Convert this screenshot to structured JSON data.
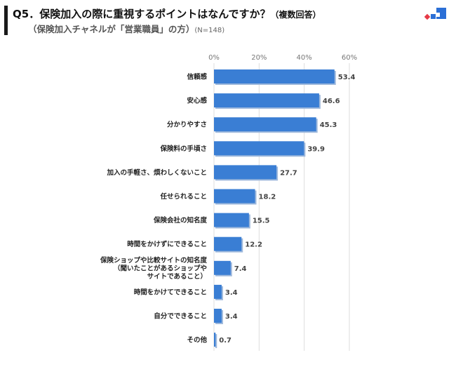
{
  "header": {
    "question": "Q5．保険加入の際に重視するポイントはなんですか？",
    "question_note": "（複数回答）",
    "subtitle": "（保険加入チャネルが「営業職員」の方）",
    "sample": "(N=148)"
  },
  "colors": {
    "bar": "#3a7ed4",
    "bar_shadow": "#9fb9dc",
    "logo_red": "#e63946",
    "logo_blue": "#2b6fd6"
  },
  "chart_data": {
    "type": "bar",
    "orientation": "horizontal",
    "categories": [
      [
        "信頼感"
      ],
      [
        "安心感"
      ],
      [
        "分かりやすさ"
      ],
      [
        "保険料の手頃さ"
      ],
      [
        "加入の手軽さ、煩わしくないこと"
      ],
      [
        "任せられること"
      ],
      [
        "保険会社の知名度"
      ],
      [
        "時間をかけずにできること"
      ],
      [
        "保険ショップや比較サイトの知名度",
        "（聞いたことがあるショップや",
        "サイトであること）"
      ],
      [
        "時間をかけてできること"
      ],
      [
        "自分でできること"
      ],
      [
        "その他"
      ]
    ],
    "values": [
      53.4,
      46.6,
      45.3,
      39.9,
      27.7,
      18.2,
      15.5,
      12.2,
      7.4,
      3.4,
      3.4,
      0.7
    ],
    "value_labels": [
      "53.4",
      "46.6",
      "45.3",
      "39.9",
      "27.7",
      "18.2",
      "15.5",
      "12.2",
      "7.4",
      "3.4",
      "3.4",
      "0.7"
    ],
    "xlim": [
      0,
      60
    ],
    "xticks": [
      "0%",
      "20%",
      "40%",
      "60%"
    ],
    "xtick_values": [
      0,
      20,
      40,
      60
    ],
    "grid": true,
    "legend": "none"
  }
}
